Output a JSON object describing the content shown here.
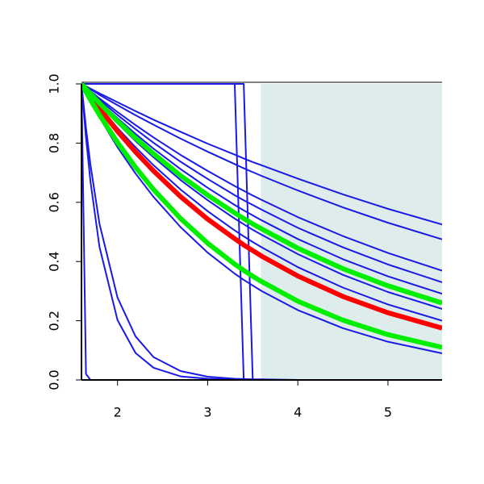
{
  "chart_data": {
    "type": "line",
    "xlim": [
      1.6,
      5.6
    ],
    "ylim": [
      0,
      1
    ],
    "xticks": [
      2,
      3,
      4,
      5
    ],
    "yticks": [
      {
        "value": 0,
        "label": "0.0"
      },
      {
        "value": 0.2,
        "label": "0.2"
      },
      {
        "value": 0.4,
        "label": "0.4"
      },
      {
        "value": 0.6,
        "label": "0.6"
      },
      {
        "value": 0.8,
        "label": "0.8"
      },
      {
        "value": 1,
        "label": "1.0"
      }
    ],
    "shaded_region": {
      "x": [
        3.59,
        5.6
      ],
      "color": "#dfecec"
    },
    "x": [
      1.6,
      1.65,
      1.7,
      1.8,
      2.0,
      2.2,
      2.4,
      2.7,
      3.0,
      3.3,
      3.4,
      3.5,
      3.6,
      4.0,
      4.5,
      5.0,
      5.6
    ],
    "series": [
      {
        "color": "#1a1ae6",
        "values": [
          1,
          0.992,
          0.984,
          0.968,
          0.938,
          0.908,
          0.879,
          0.838,
          0.798,
          0.761,
          0.748,
          0.736,
          0.725,
          0.68,
          0.627,
          0.578,
          0.525
        ]
      },
      {
        "color": "#1a1ae6",
        "values": [
          1,
          0.991,
          0.982,
          0.963,
          0.928,
          0.894,
          0.862,
          0.815,
          0.771,
          0.729,
          0.715,
          0.702,
          0.689,
          0.64,
          0.583,
          0.531,
          0.475
        ]
      },
      {
        "color": "#1a1ae6",
        "values": [
          1,
          0.988,
          0.975,
          0.951,
          0.905,
          0.861,
          0.819,
          0.76,
          0.706,
          0.655,
          0.639,
          0.623,
          0.608,
          0.55,
          0.486,
          0.429,
          0.369
        ]
      },
      {
        "color": "#1a1ae6",
        "values": [
          1,
          0.986,
          0.973,
          0.946,
          0.895,
          0.847,
          0.801,
          0.737,
          0.679,
          0.624,
          0.607,
          0.591,
          0.575,
          0.514,
          0.448,
          0.39,
          0.33
        ]
      },
      {
        "color": "#1a1ae6",
        "values": [
          1,
          0.985,
          0.97,
          0.94,
          0.884,
          0.831,
          0.781,
          0.712,
          0.649,
          0.591,
          0.573,
          0.556,
          0.539,
          0.476,
          0.408,
          0.35,
          0.291
        ]
      },
      {
        "color": "#1a1ae6",
        "values": [
          1,
          0.982,
          0.965,
          0.931,
          0.867,
          0.807,
          0.752,
          0.675,
          0.607,
          0.545,
          0.526,
          0.507,
          0.49,
          0.425,
          0.355,
          0.297,
          0.24
        ]
      },
      {
        "color": "#1a1ae6",
        "values": [
          1,
          0.98,
          0.961,
          0.923,
          0.851,
          0.786,
          0.725,
          0.643,
          0.57,
          0.505,
          0.485,
          0.466,
          0.448,
          0.381,
          0.312,
          0.255,
          0.2
        ]
      },
      {
        "color": "#1a1ae6",
        "values": [
          1,
          0.97,
          0.942,
          0.887,
          0.786,
          0.697,
          0.618,
          0.516,
          0.43,
          0.359,
          0.338,
          0.319,
          0.3,
          0.236,
          0.175,
          0.129,
          0.09
        ]
      },
      {
        "color": "#1a1ae6",
        "values": [
          1,
          0.819,
          0.67,
          0.449,
          0.202,
          0.091,
          0.041,
          0.012,
          0.004,
          0.001,
          0,
          0,
          0,
          0,
          0,
          0,
          0
        ]
      },
      {
        "color": "#1a1ae6",
        "values": [
          1,
          0.852,
          0.726,
          0.527,
          0.278,
          0.147,
          0.077,
          0.03,
          0.011,
          0.004,
          0.003,
          0.002,
          0.002,
          0,
          0,
          0,
          0
        ]
      },
      {
        "color": "#1a1ae6",
        "values": [
          1,
          0.02,
          0,
          0,
          0,
          0,
          0,
          0,
          0,
          0,
          0,
          0,
          0,
          0,
          0,
          0,
          0
        ]
      },
      {
        "color": "#1a1ae6",
        "values": [
          1,
          1,
          1,
          1,
          1,
          1,
          1,
          1,
          1,
          1,
          0,
          0,
          0,
          0,
          0,
          0,
          0
        ]
      },
      {
        "color": "#1a1ae6",
        "values": [
          1,
          1,
          1,
          1,
          1,
          1,
          1,
          1,
          1,
          1,
          1,
          0,
          0,
          0,
          0,
          0,
          0
        ]
      },
      {
        "color": "#ff0000",
        "width": 6,
        "values": [
          1,
          0.978,
          0.957,
          0.917,
          0.84,
          0.77,
          0.706,
          0.619,
          0.543,
          0.477,
          0.456,
          0.437,
          0.418,
          0.351,
          0.282,
          0.227,
          0.175
        ]
      },
      {
        "color": "#00ee00",
        "width": 6,
        "values": [
          1,
          0.983,
          0.967,
          0.935,
          0.874,
          0.817,
          0.764,
          0.69,
          0.624,
          0.564,
          0.545,
          0.527,
          0.51,
          0.445,
          0.376,
          0.318,
          0.26
        ]
      },
      {
        "color": "#00ee00",
        "width": 6,
        "values": [
          1,
          0.973,
          0.946,
          0.895,
          0.802,
          0.718,
          0.643,
          0.545,
          0.462,
          0.391,
          0.37,
          0.35,
          0.332,
          0.266,
          0.202,
          0.153,
          0.11
        ]
      }
    ]
  }
}
